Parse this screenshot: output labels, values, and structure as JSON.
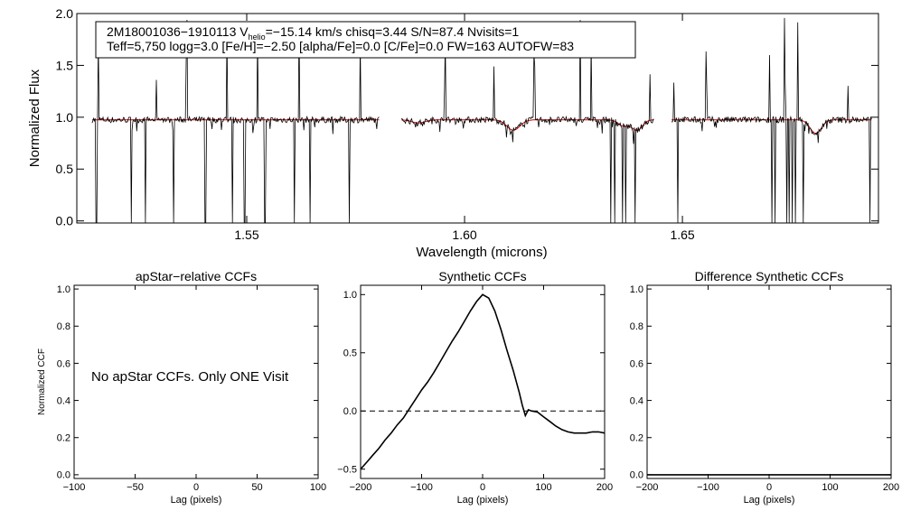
{
  "chart_data": [
    {
      "type": "line",
      "id": "spectrum",
      "title": "",
      "xlabel": "Wavelength (microns)",
      "ylabel": "Normalized Flux",
      "xlim": [
        1.511,
        1.695
      ],
      "ylim": [
        -0.02,
        2.0
      ],
      "xticks": [
        1.55,
        1.6,
        1.65
      ],
      "xtick_labels": [
        "1.55",
        "1.60",
        "1.65"
      ],
      "yticks": [
        0.0,
        0.5,
        1.0,
        1.5,
        2.0
      ],
      "ytick_labels": [
        "0.0",
        "0.5",
        "1.0",
        "1.5",
        "2.0"
      ],
      "chips": [
        [
          1.5145,
          1.5805
        ],
        [
          1.5855,
          1.6435
        ],
        [
          1.6475,
          1.6935
        ]
      ],
      "continuum": 0.975,
      "absorption_features": [
        {
          "center": 1.6112,
          "depth": 0.1,
          "width": 0.0015
        },
        {
          "center": 1.6365,
          "depth": 0.06,
          "width": 0.0012
        },
        {
          "center": 1.6396,
          "depth": 0.1,
          "width": 0.0012
        },
        {
          "center": 1.6806,
          "depth": 0.13,
          "width": 0.0013
        },
        {
          "center": 1.5894,
          "depth": 0.03,
          "width": 0.0015
        }
      ],
      "sharp_dips": [
        1.5155,
        1.5235,
        1.5268,
        1.5332,
        1.5405,
        1.5467,
        1.5495,
        1.5542,
        1.561,
        1.5645,
        1.5735,
        1.5956,
        1.6335,
        1.6345,
        1.6362,
        1.637,
        1.6392,
        1.649,
        1.6705,
        1.6712,
        1.674,
        1.6745,
        1.6752,
        1.676,
        1.6778,
        1.693
      ],
      "sharp_spikes": [
        1.516,
        1.5292,
        1.5362,
        1.5455,
        1.5525,
        1.562,
        1.576,
        1.5955,
        1.6068,
        1.616,
        1.6265,
        1.629,
        1.6425,
        1.648,
        1.6555,
        1.67,
        1.6735,
        1.6765,
        1.688
      ],
      "series": [
        {
          "name": "observed",
          "color": "#000000"
        },
        {
          "name": "model",
          "color": "#cc0000"
        }
      ],
      "annotation_line1_parts": [
        "2M18001036−1910113  V",
        "helio",
        "=−15.14 km/s  chisq=3.44  S/N=87.4  Nvisits=1"
      ],
      "annotation_line2": "Teff=5,750 logg=3.0 [Fe/H]=−2.50 [alpha/Fe]=0.0 [C/Fe]=0.0 FW=163 AUTOFW=83"
    },
    {
      "type": "line",
      "id": "apstar",
      "title": "apStar−relative CCFs",
      "xlabel": "Lag (pixels)",
      "ylabel": "Normalized CCF",
      "xlim": [
        -100,
        100
      ],
      "ylim": [
        -0.02,
        1.02
      ],
      "xticks": [
        -100,
        -50,
        0,
        50,
        100
      ],
      "xtick_labels": [
        "−100",
        "−50",
        "0",
        "50",
        "100"
      ],
      "yticks": [
        0.0,
        0.2,
        0.4,
        0.6,
        0.8,
        1.0
      ],
      "ytick_labels": [
        "0.0",
        "0.2",
        "0.4",
        "0.6",
        "0.8",
        "1.0"
      ],
      "annotation": "No apStar CCFs.  Only ONE Visit",
      "series": []
    },
    {
      "type": "line",
      "id": "synthetic",
      "title": "Synthetic CCFs",
      "xlabel": "Lag (pixels)",
      "ylabel": "",
      "xlim": [
        -200,
        200
      ],
      "ylim": [
        -0.58,
        1.08
      ],
      "xticks": [
        -200,
        -100,
        0,
        100,
        200
      ],
      "xtick_labels": [
        "−200",
        "−100",
        "0",
        "100",
        "200"
      ],
      "yticks": [
        -0.5,
        0.0,
        0.5,
        1.0
      ],
      "ytick_labels": [
        "−0.5",
        "0.0",
        "0.5",
        "1.0"
      ],
      "zero_line": 0.0,
      "series": [
        {
          "name": "ccf",
          "x": [
            -200,
            -190,
            -180,
            -170,
            -160,
            -150,
            -140,
            -130,
            -120,
            -110,
            -100,
            -90,
            -80,
            -70,
            -60,
            -50,
            -40,
            -30,
            -20,
            -10,
            0,
            10,
            20,
            30,
            40,
            50,
            60,
            65,
            70,
            75,
            80,
            90,
            100,
            110,
            120,
            130,
            140,
            150,
            160,
            170,
            180,
            190,
            200
          ],
          "y": [
            -0.5,
            -0.44,
            -0.38,
            -0.32,
            -0.25,
            -0.19,
            -0.12,
            -0.06,
            0.02,
            0.1,
            0.18,
            0.25,
            0.33,
            0.42,
            0.51,
            0.6,
            0.68,
            0.77,
            0.86,
            0.94,
            1.0,
            0.97,
            0.86,
            0.7,
            0.52,
            0.35,
            0.16,
            0.05,
            -0.04,
            0.01,
            0.0,
            -0.01,
            -0.05,
            -0.09,
            -0.13,
            -0.16,
            -0.18,
            -0.19,
            -0.19,
            -0.19,
            -0.18,
            -0.18,
            -0.19
          ]
        }
      ]
    },
    {
      "type": "line",
      "id": "difference",
      "title": "Difference Synthetic CCFs",
      "xlabel": "Lag (pixels)",
      "ylabel": "",
      "xlim": [
        -200,
        200
      ],
      "ylim": [
        -0.02,
        1.02
      ],
      "xticks": [
        -200,
        -100,
        0,
        100,
        200
      ],
      "xtick_labels": [
        "−200",
        "−100",
        "0",
        "100",
        "200"
      ],
      "yticks": [
        0.0,
        0.2,
        0.4,
        0.6,
        0.8,
        1.0
      ],
      "ytick_labels": [
        "0.0",
        "0.2",
        "0.4",
        "0.6",
        "0.8",
        "1.0"
      ],
      "series": [
        {
          "name": "difference",
          "x": [
            -200,
            200
          ],
          "y": [
            0.0,
            0.0
          ]
        }
      ]
    }
  ]
}
